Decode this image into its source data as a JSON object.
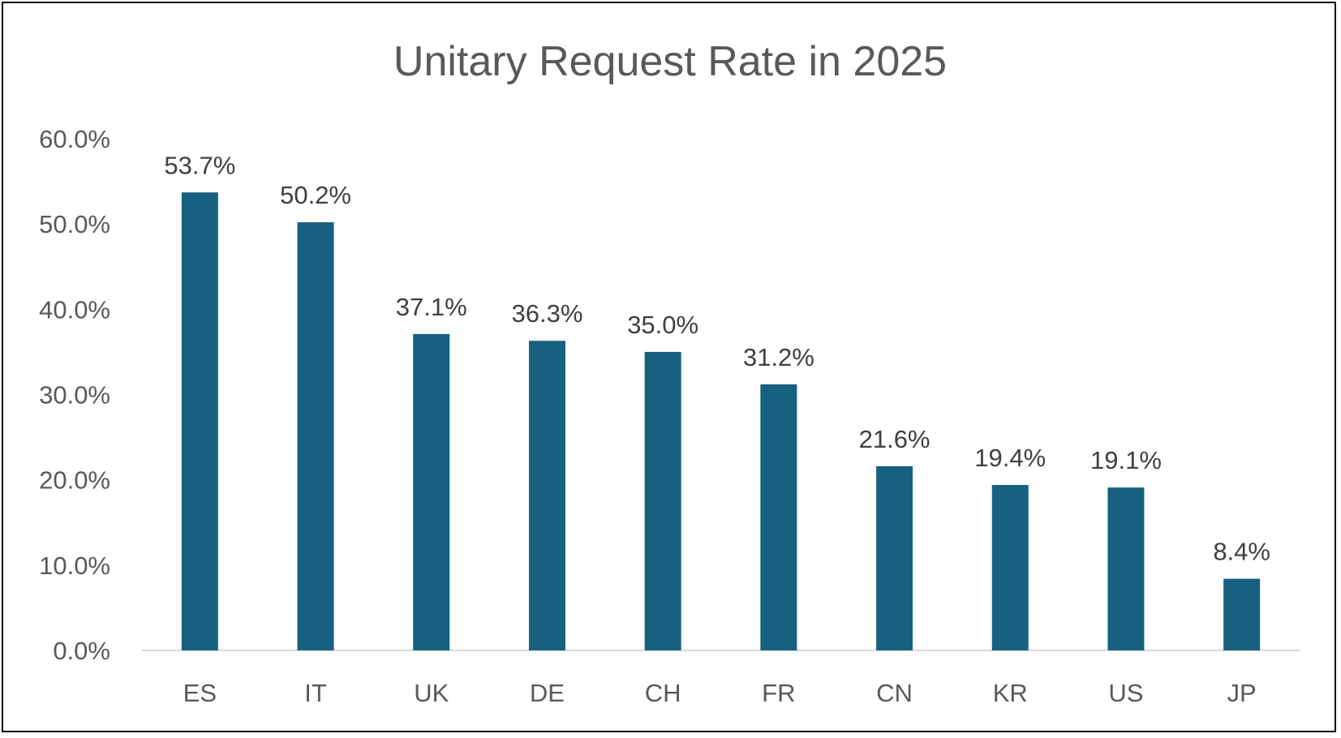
{
  "chart_data": {
    "type": "bar",
    "title": "Unitary Request Rate in 2025",
    "xlabel": "",
    "ylabel": "",
    "categories": [
      "ES",
      "IT",
      "UK",
      "DE",
      "CH",
      "FR",
      "CN",
      "KR",
      "US",
      "JP"
    ],
    "values": [
      53.7,
      50.2,
      37.1,
      36.3,
      35.0,
      31.2,
      21.6,
      19.4,
      19.1,
      8.4
    ],
    "data_labels": [
      "53.7%",
      "50.2%",
      "37.1%",
      "36.3%",
      "35.0%",
      "31.2%",
      "21.6%",
      "19.4%",
      "19.1%",
      "8.4%"
    ],
    "ylim": [
      0,
      60
    ],
    "y_ticks": [
      0,
      10,
      20,
      30,
      40,
      50,
      60
    ],
    "y_tick_labels": [
      "0.0%",
      "10.0%",
      "20.0%",
      "30.0%",
      "40.0%",
      "50.0%",
      "60.0%"
    ],
    "grid": false,
    "legend": "none",
    "colors": {
      "bar": "#17607f",
      "axis_line": "#d9d9d9",
      "title": "#595959",
      "tick_text": "#595959",
      "data_label_text": "#404040",
      "frame_border": "#000000"
    }
  }
}
